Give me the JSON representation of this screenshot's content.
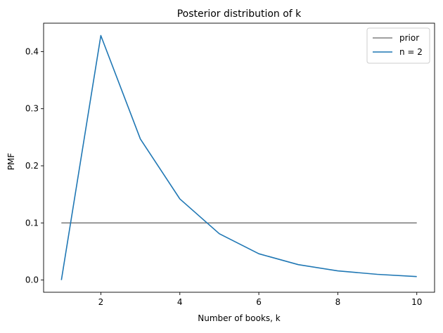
{
  "chart_data": {
    "type": "line",
    "title": "Posterior distribution of k",
    "xlabel": "Number of books, k",
    "ylabel": "PMF",
    "xlim": [
      0.55,
      10.45
    ],
    "ylim": [
      -0.0214,
      0.4497
    ],
    "xticks": [
      2,
      4,
      6,
      8,
      10
    ],
    "xtick_labels": [
      "2",
      "4",
      "6",
      "8",
      "10"
    ],
    "yticks": [
      0.0,
      0.1,
      0.2,
      0.3,
      0.4
    ],
    "ytick_labels": [
      "0.0",
      "0.1",
      "0.2",
      "0.3",
      "0.4"
    ],
    "grid": false,
    "legend_position": "top-right",
    "series": [
      {
        "name": "prior",
        "color": "#808080",
        "x": [
          1,
          2,
          3,
          4,
          5,
          6,
          7,
          8,
          9,
          10
        ],
        "y": [
          0.1,
          0.1,
          0.1,
          0.1,
          0.1,
          0.1,
          0.1,
          0.1,
          0.1,
          0.1
        ]
      },
      {
        "name": "n = 2",
        "color": "#1f77b4",
        "x": [
          1,
          2,
          3,
          4,
          5,
          6,
          7,
          8,
          9,
          10
        ],
        "y": [
          0.0,
          0.428,
          0.247,
          0.142,
          0.081,
          0.046,
          0.027,
          0.016,
          0.01,
          0.006
        ]
      }
    ]
  }
}
